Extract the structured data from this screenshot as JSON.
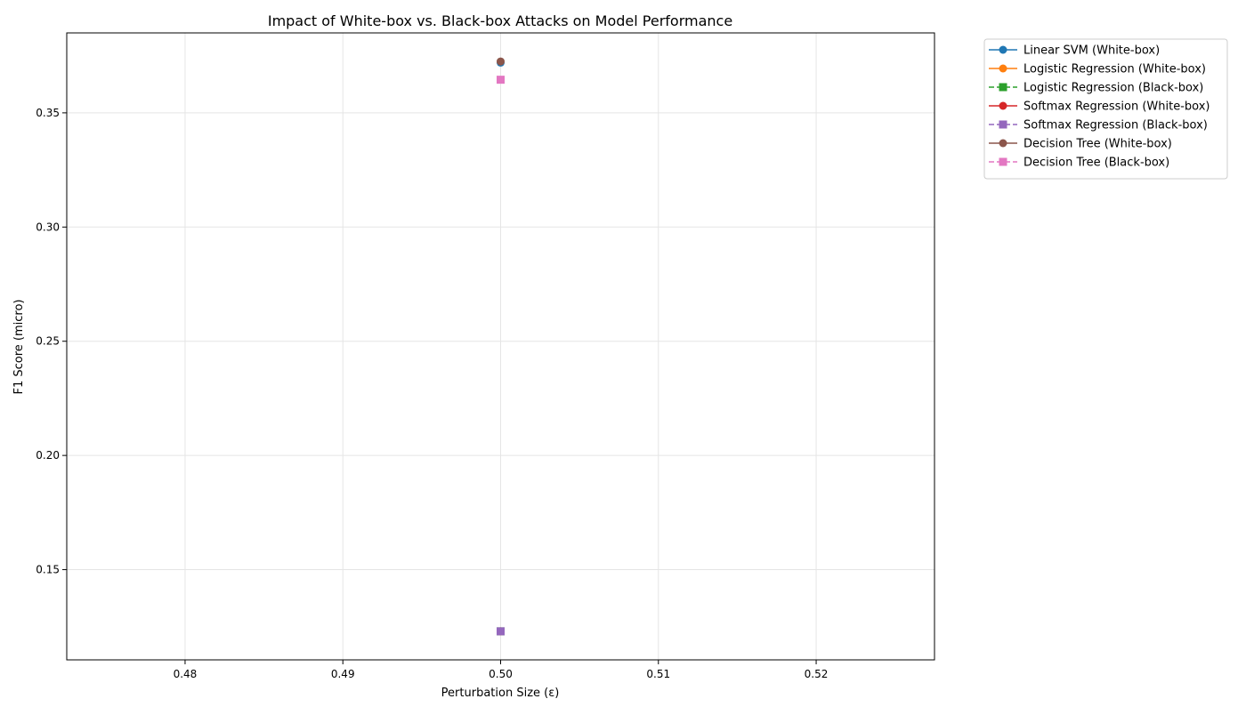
{
  "chart_data": {
    "type": "line",
    "title": "Impact of White-box vs. Black-box Attacks on Model Performance",
    "xlabel": "Perturbation Size (ε)",
    "ylabel": "F1 Score (micro)",
    "xlim": [
      0.4725,
      0.5275
    ],
    "ylim": [
      0.1105,
      0.385
    ],
    "xticks": [
      0.48,
      0.49,
      0.5,
      0.51,
      0.52
    ],
    "xtick_labels": [
      "0.48",
      "0.49",
      "0.50",
      "0.51",
      "0.52"
    ],
    "yticks": [
      0.15,
      0.2,
      0.25,
      0.3,
      0.35
    ],
    "ytick_labels": [
      "0.15",
      "0.20",
      "0.25",
      "0.30",
      "0.35"
    ],
    "grid": true,
    "legend_position": "outside-top-right",
    "series": [
      {
        "name": "Linear SVM (White-box)",
        "x": [
          0.5
        ],
        "y": [
          0.372
        ],
        "color": "#1f77b4",
        "marker": "circle",
        "linestyle": "solid"
      },
      {
        "name": "Logistic Regression (White-box)",
        "x": [
          0.5
        ],
        "y": [
          0.123
        ],
        "color": "#ff7f0e",
        "marker": "circle",
        "linestyle": "solid"
      },
      {
        "name": "Logistic Regression (Black-box)",
        "x": [
          0.5
        ],
        "y": [
          0.123
        ],
        "color": "#2ca02c",
        "marker": "square",
        "linestyle": "dashed"
      },
      {
        "name": "Softmax Regression (White-box)",
        "x": [
          0.5
        ],
        "y": [
          0.123
        ],
        "color": "#d62728",
        "marker": "circle",
        "linestyle": "solid"
      },
      {
        "name": "Softmax Regression (Black-box)",
        "x": [
          0.5
        ],
        "y": [
          0.123
        ],
        "color": "#9467bd",
        "marker": "square",
        "linestyle": "dashed"
      },
      {
        "name": "Decision Tree (White-box)",
        "x": [
          0.5
        ],
        "y": [
          0.3725
        ],
        "color": "#8c564b",
        "marker": "circle",
        "linestyle": "solid"
      },
      {
        "name": "Decision Tree (Black-box)",
        "x": [
          0.5
        ],
        "y": [
          0.3645
        ],
        "color": "#e377c2",
        "marker": "square",
        "linestyle": "dashed"
      }
    ]
  }
}
